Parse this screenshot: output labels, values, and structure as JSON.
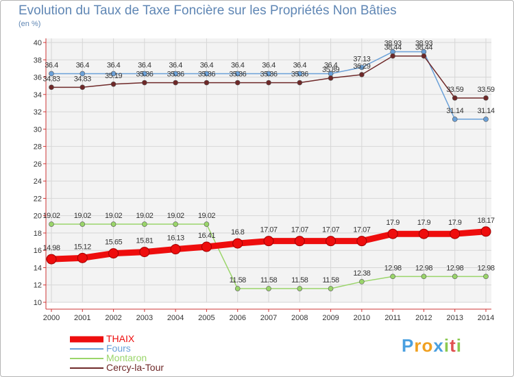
{
  "chart_data": {
    "type": "line",
    "title": "Evolution du Taux de Taxe Foncière sur les Propriétés Non Bâties",
    "subtitle": "(en %)",
    "xlabel": "",
    "ylabel": "(en %)",
    "ylim": [
      10,
      40
    ],
    "yticks": [
      "10",
      "12",
      "14",
      "16",
      "18",
      "20",
      "22",
      "24",
      "26",
      "28",
      "30",
      "32",
      "34",
      "36",
      "38",
      "40"
    ],
    "categories": [
      "2000",
      "2001",
      "2002",
      "2003",
      "2004",
      "2005",
      "2006",
      "2007",
      "2008",
      "2009",
      "2010",
      "2011",
      "2012",
      "2013",
      "2014"
    ],
    "grid": true,
    "legend_position": "bottom-left",
    "series": [
      {
        "name": "Fours",
        "color": "#6aa0d8",
        "values": [
          36.4,
          36.4,
          36.4,
          36.4,
          36.4,
          36.4,
          36.4,
          36.4,
          36.4,
          36.4,
          37.13,
          38.93,
          38.93,
          31.14,
          31.14
        ],
        "labels": [
          "36.4",
          "36.4",
          "36.4",
          "36.4",
          "36.4",
          "36.4",
          "36.4",
          "36.4",
          "36.4",
          "36.4",
          "37.13",
          "38.93",
          "38.93",
          "31.14",
          "31.14"
        ]
      },
      {
        "name": "Cercy-la-Tour",
        "color": "#6e2828",
        "values": [
          34.83,
          34.83,
          35.19,
          35.36,
          35.36,
          35.36,
          35.36,
          35.36,
          35.36,
          35.89,
          36.29,
          38.44,
          38.44,
          33.59,
          33.59
        ],
        "labels": [
          "34.83",
          "34.83",
          "35.19",
          "35.36",
          "35.36",
          "35.36",
          "35.36",
          "35.36",
          "35.36",
          "35.89",
          "36.29",
          "38.44",
          "38.44",
          "33.59",
          "33.59"
        ]
      },
      {
        "name": "Montaron",
        "color": "#9ad56a",
        "values": [
          19.02,
          19.02,
          19.02,
          19.02,
          19.02,
          19.02,
          11.58,
          11.58,
          11.58,
          11.58,
          12.38,
          12.98,
          12.98,
          12.98,
          12.98
        ],
        "labels": [
          "19.02",
          "19.02",
          "19.02",
          "19.02",
          "19.02",
          "19.02",
          "11.58",
          "11.58",
          "11.58",
          "11.58",
          "12.38",
          "12.98",
          "12.98",
          "12.98",
          "12.98"
        ]
      },
      {
        "name": "THAIX",
        "color": "#ee0d0d",
        "values": [
          14.98,
          15.12,
          15.65,
          15.81,
          16.13,
          16.41,
          16.8,
          17.07,
          17.07,
          17.07,
          17.07,
          17.9,
          17.9,
          17.9,
          18.17
        ],
        "labels": [
          "14.98",
          "15.12",
          "15.65",
          "15.81",
          "16.13",
          "16.41",
          "16.8",
          "17.07",
          "17.07",
          "17.07",
          "17.07",
          "17.9",
          "17.9",
          "17.9",
          "18.17"
        ]
      }
    ],
    "legend": [
      "THAIX",
      "Fours",
      "Montaron",
      "Cercy-la-Tour"
    ]
  },
  "logo": {
    "text": "Proxiti",
    "letters": [
      "P",
      "r",
      "o",
      "x",
      "i",
      "t",
      "i"
    ],
    "colors": [
      "#4aa0e0",
      "#f0a020",
      "#f0a020",
      "#4aa0e0",
      "#8ac850",
      "#e05050",
      "#8ac850"
    ]
  }
}
